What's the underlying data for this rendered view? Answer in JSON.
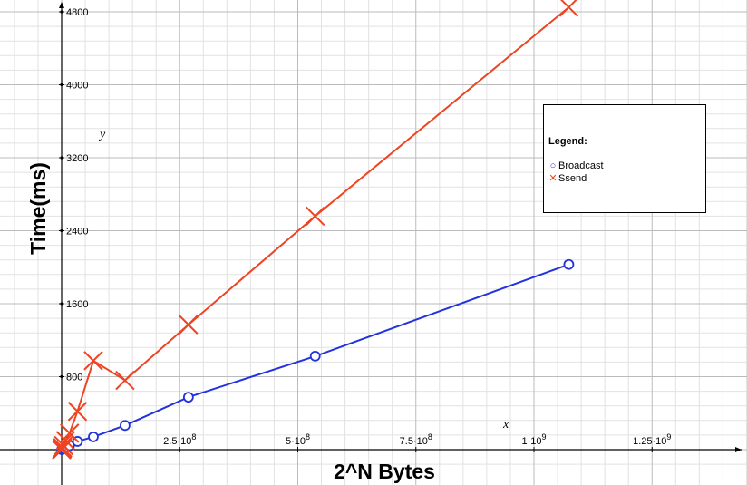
{
  "chart_data": {
    "type": "line",
    "title": "",
    "xlabel": "2^N Bytes",
    "ylabel": "Time(ms)",
    "x_axis_letter": "x",
    "y_axis_letter": "y",
    "xlim": [
      -125000000,
      1440000000
    ],
    "ylim": [
      -250,
      4900
    ],
    "x_ticks": [
      {
        "value": 250000000,
        "label": "2.5·10",
        "exp": "8"
      },
      {
        "value": 500000000,
        "label": "5·10",
        "exp": "8"
      },
      {
        "value": 750000000,
        "label": "7.5·10",
        "exp": "8"
      },
      {
        "value": 1000000000,
        "label": "1·10",
        "exp": "9"
      },
      {
        "value": 1250000000,
        "label": "1.25·10",
        "exp": "9"
      }
    ],
    "y_ticks": [
      {
        "value": 800,
        "label": "800"
      },
      {
        "value": 1600,
        "label": "1600"
      },
      {
        "value": 2400,
        "label": "2400"
      },
      {
        "value": 3200,
        "label": "3200"
      },
      {
        "value": 4000,
        "label": "4000"
      },
      {
        "value": 4800,
        "label": "4800"
      }
    ],
    "grid": true,
    "legend_title": "Legend:",
    "legend_position": "right",
    "series": [
      {
        "name": "Broadcast",
        "marker": "circle",
        "color": "#2233dd",
        "x": [
          0,
          1048576,
          2097152,
          4194304,
          8388608,
          16777216,
          33554432,
          67108864,
          134217728,
          268435456,
          536870912,
          1073741824
        ],
        "y": [
          0,
          2,
          5,
          10,
          22,
          45,
          90,
          140,
          265,
          575,
          1025,
          2030
        ]
      },
      {
        "name": "Ssend",
        "marker": "x",
        "color": "#ee4422",
        "x": [
          0,
          1048576,
          2097152,
          4194304,
          8388608,
          16777216,
          33554432,
          67108864,
          134217728,
          268435456,
          536870912,
          1073741824
        ],
        "y": [
          0,
          5,
          20,
          45,
          100,
          180,
          420,
          975,
          760,
          1370,
          2560,
          4850
        ]
      }
    ]
  }
}
